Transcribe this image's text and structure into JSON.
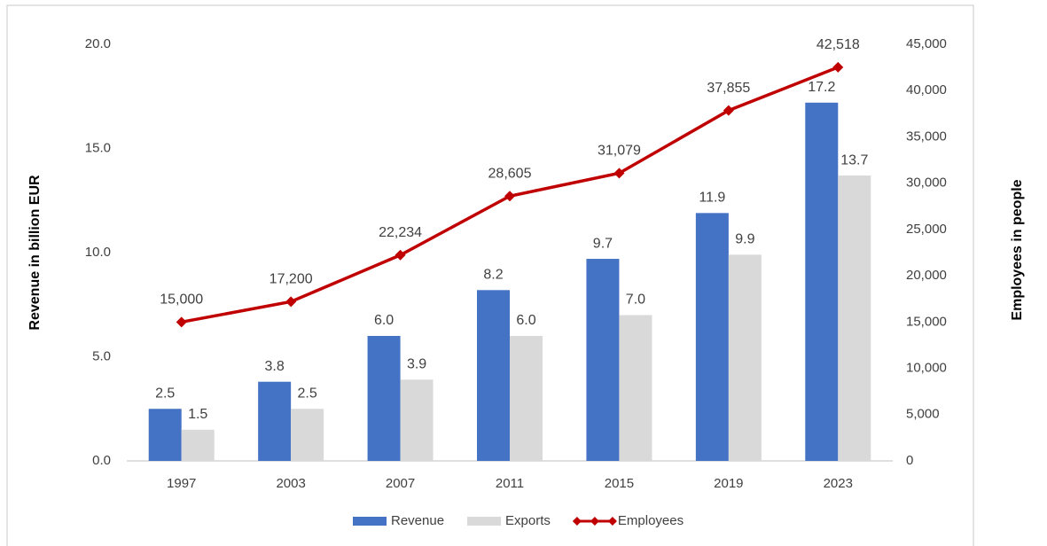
{
  "chart_data": {
    "type": "bar_line",
    "categories": [
      "1997",
      "2003",
      "2007",
      "2011",
      "2015",
      "2019",
      "2023"
    ],
    "ylabel": "Revenue in billion EUR",
    "y2label": "Employees in people",
    "ylim": [
      0,
      20
    ],
    "yticks": [
      {
        "value": 0,
        "label": "0.0"
      },
      {
        "value": 5,
        "label": "5.0"
      },
      {
        "value": 10,
        "label": "10.0"
      },
      {
        "value": 15,
        "label": "15.0"
      },
      {
        "value": 20,
        "label": "20.0"
      }
    ],
    "y2lim": [
      0,
      45000
    ],
    "y2ticks": [
      0,
      {
        "value": 5000,
        "label": "5,000"
      },
      {
        "value": 10000,
        "label": "10,000"
      },
      {
        "value": 15000,
        "label": "15,000"
      },
      {
        "value": 20000,
        "label": "20,000"
      },
      {
        "value": 25000,
        "label": "25,000"
      },
      {
        "value": 30000,
        "label": "30,000"
      },
      {
        "value": 35000,
        "label": "35,000"
      },
      {
        "value": 40000,
        "label": "40,000"
      },
      {
        "value": 45000,
        "label": "45,000"
      }
    ],
    "legend": "bottom",
    "series": [
      {
        "name": "Revenue",
        "type": "bar",
        "color": "#4472c4",
        "values": [
          2.5,
          3.8,
          6.0,
          8.2,
          9.7,
          11.9,
          17.2
        ],
        "value_labels": [
          "2.5",
          "3.8",
          "6.0",
          "8.2",
          "9.7",
          "11.9",
          "17.2"
        ]
      },
      {
        "name": "Exports",
        "type": "bar",
        "color": "#d9d9d9",
        "values": [
          1.5,
          2.5,
          3.9,
          6.0,
          7.0,
          9.9,
          13.7
        ],
        "value_labels": [
          "1.5",
          "2.5",
          "3.9",
          "6.0",
          "7.0",
          "9.9",
          "13.7"
        ]
      },
      {
        "name": "Employees",
        "type": "line",
        "axis": "y2",
        "color": "#c00000",
        "values": [
          15000,
          17200,
          22234,
          28605,
          31079,
          37855,
          42518
        ],
        "value_labels": [
          "15,000",
          "17,200",
          "22,234",
          "28,605",
          "31,079",
          "37,855",
          "42,518"
        ]
      }
    ]
  }
}
